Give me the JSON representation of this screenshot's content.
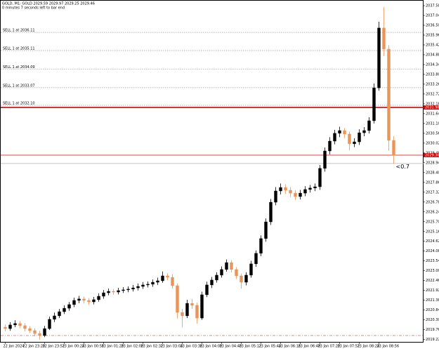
{
  "chart_data": {
    "type": "candlestick",
    "title": "GOLD, M1: GOLD  2029.59 2029.97 2029.25 2029.46",
    "subtitle": "0 minutes 7 seconds left to bar end",
    "up_color": "#000000",
    "down_color": "#e8955a",
    "ylim": [
      2019.09,
      2037.89
    ],
    "yticks": [
      2037.58,
      2037.04,
      {
        "value": 2036.5,
        "label": "2036.50"
      },
      2035.96,
      2035.42,
      2034.88,
      2034.34,
      {
        "value": 2033.8,
        "label": "2033.80"
      },
      2033.26,
      2032.72,
      2032.18,
      2031.64,
      {
        "value": 2031.1,
        "label": "2031.10"
      },
      2030.56,
      2030.02,
      2029.48,
      2028.94,
      {
        "value": 2028.4,
        "label": "2028.40"
      },
      2027.86,
      2027.32,
      2026.78,
      2026.24,
      {
        "value": 2025.7,
        "label": "2025.70"
      },
      2025.16,
      2024.62,
      2024.08,
      2023.54,
      {
        "value": 2023,
        "label": "2023.00"
      },
      2022.46,
      2021.92,
      2021.38,
      2020.84,
      {
        "value": 2020.3,
        "label": "2020.30"
      },
      2019.76,
      2019.22
    ],
    "categories": [
      "22 Jan 2024",
      null,
      null,
      null,
      "22 Jan 23:20",
      null,
      null,
      null,
      "22 Jan 23:52",
      null,
      null,
      null,
      "23 Jan 00:24",
      null,
      null,
      null,
      "23 Jan 00:56",
      null,
      null,
      null,
      "23 Jan 01:28",
      null,
      null,
      null,
      "23 Jan 02:00",
      null,
      null,
      null,
      "23 Jan 02:32",
      null,
      null,
      null,
      "23 Jan 03:04",
      null,
      null,
      null,
      "23 Jan 03:36",
      null,
      null,
      null,
      "23 Jan 04:08",
      null,
      null,
      null,
      "23 Jan 04:40",
      null,
      null,
      null,
      "23 Jan 05:12",
      null,
      null,
      null,
      "23 Jan 05:44",
      null,
      null,
      null,
      "23 Jan 06:16",
      null,
      null,
      null,
      "23 Jan 06:48",
      null,
      null,
      null,
      "23 Jan 07:20",
      null,
      null,
      null,
      "23 Jan 07:52",
      null,
      null,
      null,
      "23 Jan 08:24",
      null,
      null,
      null,
      "23 Jan 08:56",
      null,
      null,
      null
    ],
    "open": [
      2019.9,
      2019.82,
      2020.02,
      2020.1,
      2019.98,
      2019.82,
      2019.71,
      2019.55,
      2019.44,
      2019.82,
      2020.33,
      2020.52,
      2020.75,
      2020.94,
      2021.14,
      2021.37,
      2021.45,
      2021.37,
      2021.29,
      2021.41,
      2021.6,
      2021.79,
      2021.87,
      2021.83,
      2021.91,
      2021.95,
      2021.99,
      2022.06,
      2022.14,
      2022.22,
      2022.26,
      2022.37,
      2022.45,
      2022.72,
      2022.64,
      2022.18,
      2020.71,
      2020.52,
      2021.21,
      2021.1,
      2020.4,
      2021.68,
      2022.22,
      2022.49,
      2022.76,
      2023.07,
      2023.45,
      2023.07,
      2022.72,
      2022.37,
      2022.76,
      2023.38,
      2023.96,
      2024.77,
      2025.69,
      2026.77,
      2027.39,
      2027.58,
      2027.43,
      2027.27,
      2027.08,
      2027.27,
      2027.47,
      2027.55,
      2027.62,
      2028.63,
      2029.59,
      2030.13,
      2030.56,
      2030.71,
      2030.52,
      2029.98,
      2030.09,
      2030.59,
      2030.71,
      2031.25,
      2033.06,
      2036.35,
      2035.19,
      2030.17
    ],
    "high": [
      2020.05,
      2020.17,
      2020.28,
      2020.24,
      2020.12,
      2019.95,
      2019.84,
      2019.7,
      2019.97,
      2020.48,
      2020.7,
      2020.9,
      2021.1,
      2021.28,
      2021.52,
      2021.62,
      2021.58,
      2021.5,
      2021.56,
      2021.76,
      2021.94,
      2022.03,
      2022.0,
      2022.06,
      2022.1,
      2022.14,
      2022.22,
      2022.3,
      2022.38,
      2022.41,
      2022.52,
      2022.62,
      2022.96,
      2022.88,
      2022.8,
      2022.3,
      2020.9,
      2021.4,
      2021.45,
      2021.25,
      2021.85,
      2022.4,
      2022.66,
      2022.92,
      2023.24,
      2023.62,
      2023.58,
      2023.2,
      2022.85,
      2022.92,
      2023.55,
      2024.12,
      2024.95,
      2025.88,
      2026.95,
      2027.6,
      2027.8,
      2027.75,
      2027.6,
      2027.42,
      2027.45,
      2027.65,
      2027.72,
      2027.8,
      2028.82,
      2029.78,
      2030.35,
      2030.75,
      2030.92,
      2030.85,
      2030.66,
      2030.28,
      2030.78,
      2030.9,
      2031.45,
      2033.3,
      2036.7,
      2037.5,
      2035.4,
      2030.4
    ],
    "low": [
      2019.67,
      2019.7,
      2019.9,
      2019.85,
      2019.66,
      2019.58,
      2019.4,
      2019.2,
      2019.35,
      2019.74,
      2020.18,
      2020.4,
      2020.62,
      2020.8,
      2021.0,
      2021.22,
      2021.2,
      2021.12,
      2021.15,
      2021.3,
      2021.46,
      2021.65,
      2021.68,
      2021.7,
      2021.78,
      2021.82,
      2021.86,
      2021.92,
      2022.0,
      2022.08,
      2022.12,
      2022.22,
      2022.34,
      2022.48,
      2022.02,
      2020.38,
      2019.88,
      2020.4,
      2020.9,
      2020.1,
      2020.3,
      2021.55,
      2022.05,
      2022.35,
      2022.62,
      2022.95,
      2022.9,
      2022.55,
      2022.02,
      2022.2,
      2022.62,
      2023.22,
      2023.8,
      2024.6,
      2025.52,
      2026.6,
      2027.2,
      2027.22,
      2027.05,
      2026.9,
      2026.92,
      2027.1,
      2027.3,
      2027.38,
      2027.45,
      2028.45,
      2029.4,
      2029.95,
      2030.35,
      2030.3,
      2029.62,
      2029.8,
      2029.92,
      2030.4,
      2030.55,
      2031.1,
      2032.9,
      2034.8,
      2029.6,
      2028.88
    ],
    "close": [
      2019.82,
      2020.02,
      2020.1,
      2019.98,
      2019.82,
      2019.71,
      2019.55,
      2019.44,
      2019.82,
      2020.33,
      2020.52,
      2020.75,
      2020.94,
      2021.14,
      2021.37,
      2021.45,
      2021.37,
      2021.29,
      2021.41,
      2021.6,
      2021.79,
      2021.87,
      2021.83,
      2021.91,
      2021.95,
      2021.99,
      2022.06,
      2022.14,
      2022.22,
      2022.26,
      2022.37,
      2022.45,
      2022.72,
      2022.64,
      2022.18,
      2020.71,
      2020.52,
      2021.21,
      2021.1,
      2020.4,
      2021.68,
      2022.22,
      2022.49,
      2022.76,
      2023.07,
      2023.45,
      2023.07,
      2022.72,
      2022.37,
      2022.76,
      2023.38,
      2023.96,
      2024.77,
      2025.69,
      2026.77,
      2027.39,
      2027.58,
      2027.43,
      2027.27,
      2027.08,
      2027.27,
      2027.47,
      2027.55,
      2027.62,
      2028.63,
      2029.59,
      2030.13,
      2030.56,
      2030.71,
      2030.52,
      2029.98,
      2030.09,
      2030.59,
      2030.71,
      2031.25,
      2033.06,
      2036.35,
      2035.19,
      2030.17,
      2029.36
    ],
    "levels": [
      {
        "price": 2036.11,
        "label": "SELL 1 at 2036.11",
        "color": "#a0a0a0",
        "style": "dotted"
      },
      {
        "price": 2035.11,
        "label": "SELL 1 at 2035.11",
        "color": "#a0a0a0",
        "style": "dotted"
      },
      {
        "price": 2034.09,
        "label": "SELL 1 at 2034.09",
        "color": "#a0a0a0",
        "style": "dotted"
      },
      {
        "price": 2033.07,
        "label": "SELL 1 at 2033.07",
        "color": "#a0a0a0",
        "style": "dotted"
      },
      {
        "price": 2032.1,
        "label": "SELL 1 at 2032.10",
        "color": "#a0a0a0",
        "style": "dotted"
      },
      {
        "price": 2031.98,
        "color": "#e00000",
        "style": "thick",
        "tagged": true
      },
      {
        "price": 2029.36,
        "color": "#e00000",
        "style": "solid",
        "tagged": true
      },
      {
        "price": 2028.9,
        "color": "#b0b0b0",
        "style": "solid"
      },
      {
        "price": 2019.44,
        "color": "#c0504d",
        "style": "dashdot"
      }
    ],
    "annotation": "<0.7"
  }
}
